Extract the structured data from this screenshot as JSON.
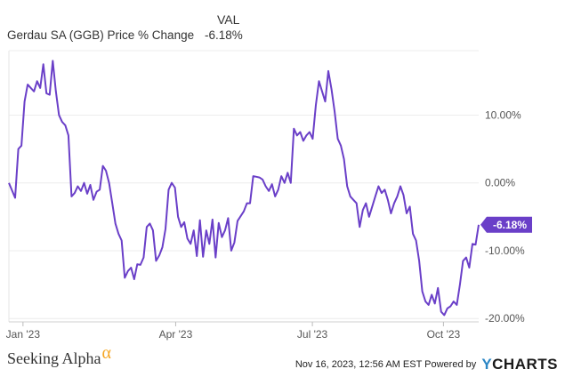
{
  "legend": {
    "column_header": "VAL",
    "series_name": "Gerdau SA (GGB) Price % Change",
    "series_value": "-6.18%"
  },
  "chart_data": {
    "type": "line",
    "title": "",
    "xlabel": "",
    "ylabel": "",
    "x_ticks": [
      "Jan '23",
      "Apr '23",
      "Jul '23",
      "Oct '23"
    ],
    "y_ticks": [
      "10.00%",
      "0.00%",
      "-10.00%",
      "-20.00%"
    ],
    "ylim": [
      -20.5,
      19.5
    ],
    "grid": "horizontal",
    "line_color": "#6a3fc8",
    "end_label": "-6.18%",
    "series": [
      {
        "values": [
          0.0,
          -1.1,
          -2.2,
          5.0,
          5.5,
          12.0,
          14.5,
          14.0,
          13.5,
          15.0,
          14.0,
          17.5,
          13.2,
          13.0,
          18.0,
          13.5,
          10.0,
          9.0,
          8.5,
          7.0,
          -2.0,
          -1.5,
          -0.5,
          -1.2,
          0.0,
          -1.6,
          -0.3,
          -2.5,
          -1.3,
          -1.0,
          2.5,
          1.8,
          0.0,
          -3.0,
          -6.0,
          -7.5,
          -8.5,
          -14.0,
          -13.0,
          -12.5,
          -14.2,
          -12.0,
          -12.1,
          -11.0,
          -6.5,
          -6.0,
          -7.0,
          -11.5,
          -10.7,
          -9.5,
          -6.8,
          -1.0,
          0.0,
          -0.7,
          -5.0,
          -6.5,
          -5.8,
          -8.2,
          -9.0,
          -7.0,
          -10.8,
          -5.5,
          -10.9,
          -7.0,
          -9.0,
          -5.4,
          -11.0,
          -5.9,
          -8.0,
          -7.0,
          -5.2,
          -10.0,
          -8.8,
          -5.6,
          -4.9,
          -4.2,
          -3.0,
          -3.0,
          1.0,
          0.9,
          0.8,
          0.5,
          -0.5,
          -1.2,
          -0.2,
          -2.0,
          -1.0,
          1.0,
          0.0,
          1.5,
          0.0,
          8.0,
          7.0,
          7.5,
          6.2,
          7.0,
          7.5,
          6.5,
          11.5,
          15.0,
          13.5,
          12.0,
          16.5,
          13.8,
          10.5,
          6.5,
          5.5,
          3.5,
          -0.5,
          -2.0,
          -2.5,
          -3.0,
          -6.5,
          -4.0,
          -3.0,
          -5.0,
          -3.5,
          -2.0,
          -0.5,
          -1.5,
          -1.0,
          -2.5,
          -4.5,
          -3.0,
          -2.0,
          -0.5,
          -1.8,
          -4.5,
          -3.5,
          -7.5,
          -8.5,
          -11.5,
          -16.0,
          -17.5,
          -18.0,
          -16.5,
          -17.8,
          -15.5,
          -19.0,
          -19.5,
          -18.5,
          -18.2,
          -17.5,
          -18.0,
          -15.0,
          -11.5,
          -11.0,
          -12.5,
          -9.0,
          -9.1,
          -6.18
        ]
      }
    ]
  },
  "footer": {
    "brand": "Seeking Alpha",
    "brand_symbol": "α",
    "timestamp": "Nov 16, 2023, 12:56 AM EST",
    "powered_by": "Powered by",
    "provider": "CHARTS",
    "provider_mark": "Y"
  }
}
